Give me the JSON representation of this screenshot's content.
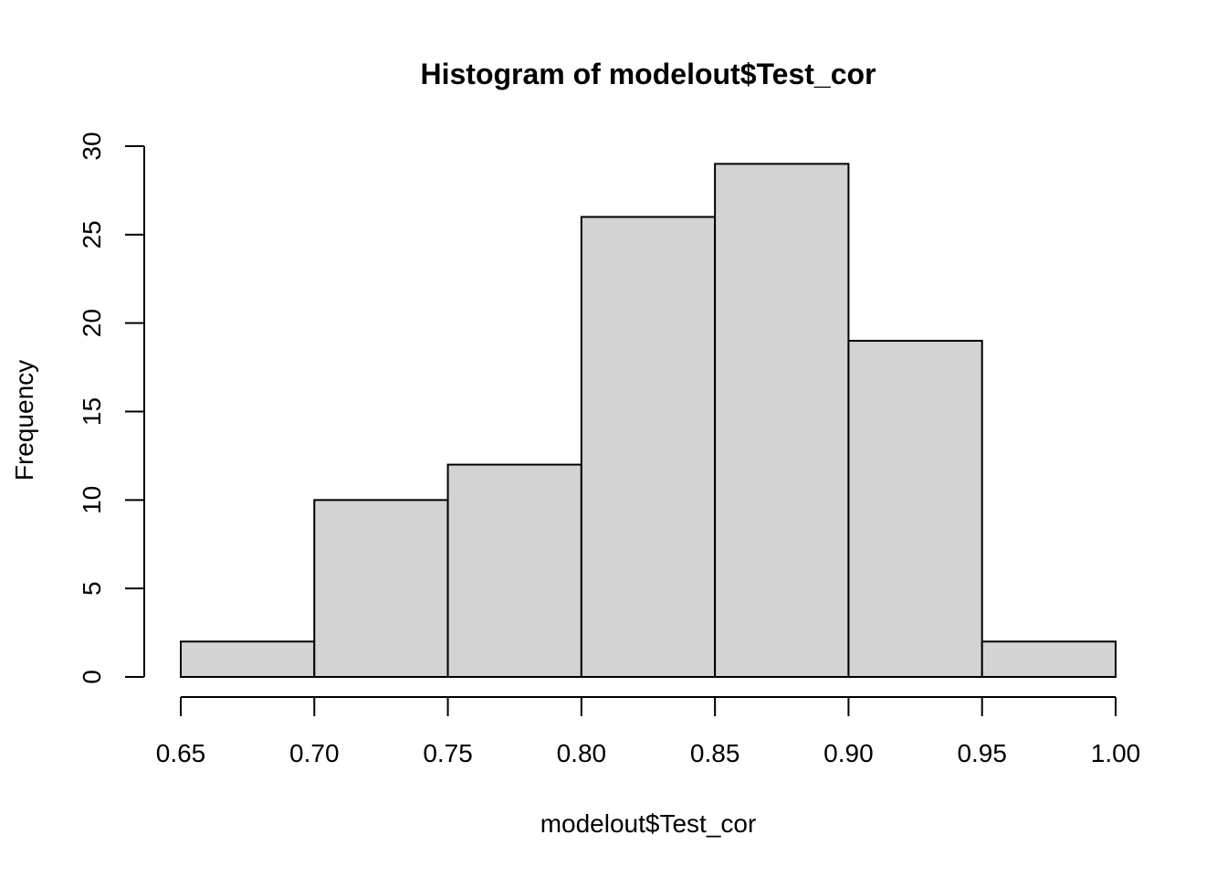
{
  "chart_data": {
    "type": "bar",
    "subtype": "histogram",
    "title": "Histogram of modelout$Test_cor",
    "xlabel": "modelout$Test_cor",
    "ylabel": "Frequency",
    "bins": [
      {
        "start": 0.65,
        "end": 0.7,
        "count": 2
      },
      {
        "start": 0.7,
        "end": 0.75,
        "count": 10
      },
      {
        "start": 0.75,
        "end": 0.8,
        "count": 12
      },
      {
        "start": 0.8,
        "end": 0.85,
        "count": 26
      },
      {
        "start": 0.85,
        "end": 0.9,
        "count": 29
      },
      {
        "start": 0.9,
        "end": 0.95,
        "count": 19
      },
      {
        "start": 0.95,
        "end": 1.0,
        "count": 2
      }
    ],
    "xlim": [
      0.65,
      1.0
    ],
    "ylim": [
      0,
      30
    ],
    "x_ticks": [
      "0.65",
      "0.70",
      "0.75",
      "0.80",
      "0.85",
      "0.90",
      "0.95",
      "1.00"
    ],
    "y_ticks": [
      "0",
      "5",
      "10",
      "15",
      "20",
      "25",
      "30"
    ],
    "bar_color": "#d3d3d3",
    "edge_color": "#000000",
    "grid": false,
    "legend": "none"
  }
}
